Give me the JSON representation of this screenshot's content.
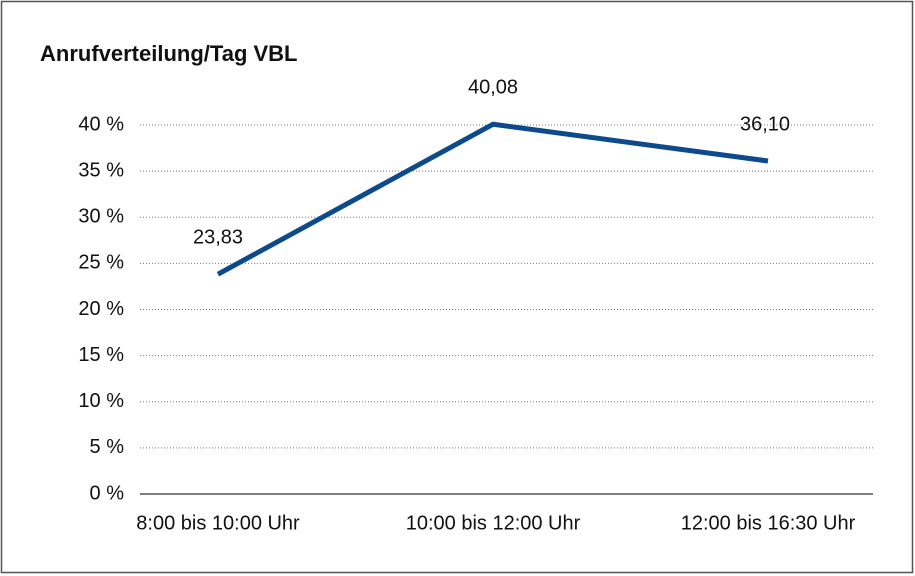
{
  "chart_data": {
    "type": "line",
    "title": "Anrufverteilung/Tag VBL",
    "categories": [
      "8:00 bis 10:00 Uhr",
      "10:00 bis 12:00 Uhr",
      "12:00 bis 16:30 Uhr"
    ],
    "values": [
      23.83,
      40.08,
      36.1
    ],
    "value_labels": [
      "23,83",
      "40,08",
      "36,10"
    ],
    "color": "#0d4a8c",
    "ylim": [
      0,
      40
    ],
    "yticks": [
      {
        "value": 0,
        "label": "0 %"
      },
      {
        "value": 5,
        "label": "5 %"
      },
      {
        "value": 10,
        "label": "10 %"
      },
      {
        "value": 15,
        "label": "15 %"
      },
      {
        "value": 20,
        "label": "20 %"
      },
      {
        "value": 25,
        "label": "25 %"
      },
      {
        "value": 30,
        "label": "30 %"
      },
      {
        "value": 35,
        "label": "35 %"
      },
      {
        "value": 40,
        "label": "40 %"
      }
    ],
    "grid": true
  }
}
